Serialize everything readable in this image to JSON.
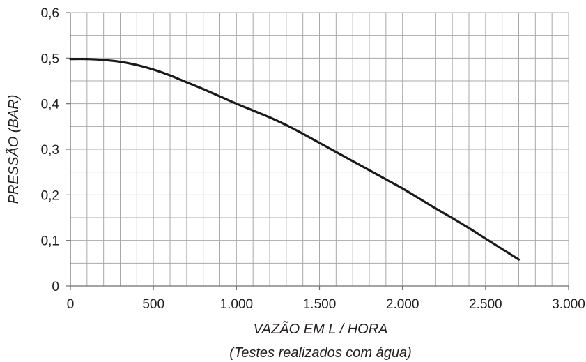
{
  "chart_data": {
    "type": "line",
    "title": "",
    "xlabel": "VAZÃO EM L / HORA",
    "xlabel_note": "(Testes realizados com água)",
    "ylabel": "PRESSÃO (BAR)",
    "xlim": [
      0,
      3000
    ],
    "ylim": [
      0,
      0.6
    ],
    "grid": true,
    "x_ticks": [
      0,
      500,
      1000,
      1500,
      2000,
      2500,
      3000
    ],
    "x_tick_labels": [
      "0",
      "500",
      "1.000",
      "1.500",
      "2.000",
      "2.500",
      "3.000"
    ],
    "y_ticks": [
      0,
      0.1,
      0.2,
      0.3,
      0.4,
      0.5,
      0.6
    ],
    "y_tick_labels": [
      "0",
      "0,1",
      "0,2",
      "0,3",
      "0,4",
      "0,5",
      "0,6"
    ],
    "x_minor_step": 100,
    "y_minor_step": 0.05,
    "series": [
      {
        "color": "#1a1a1a",
        "x": [
          0,
          100,
          200,
          300,
          400,
          500,
          600,
          700,
          800,
          900,
          1000,
          1100,
          1200,
          1300,
          1400,
          1500,
          1600,
          1700,
          1800,
          1900,
          2000,
          2100,
          2200,
          2300,
          2400,
          2500,
          2600,
          2700
        ],
        "y": [
          0.498,
          0.498,
          0.496,
          0.492,
          0.485,
          0.475,
          0.462,
          0.447,
          0.432,
          0.416,
          0.4,
          0.385,
          0.37,
          0.353,
          0.334,
          0.314,
          0.294,
          0.274,
          0.254,
          0.234,
          0.214,
          0.192,
          0.17,
          0.149,
          0.127,
          0.104,
          0.081,
          0.058
        ]
      }
    ]
  }
}
